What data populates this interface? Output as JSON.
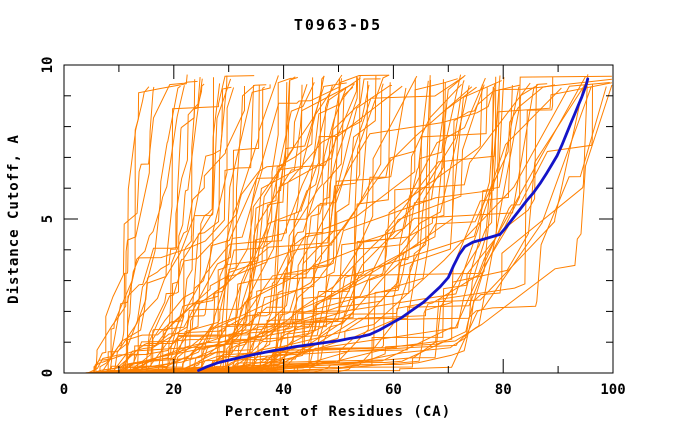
{
  "page": {
    "background": "#ffffff"
  },
  "chart_data": {
    "type": "line",
    "title": "T0963-D5",
    "xlabel": "Percent of Residues (CA)",
    "ylabel": "Distance Cutoff, A",
    "xlim": [
      0,
      100
    ],
    "ylim": [
      0,
      10
    ],
    "x_major_ticks": [
      0,
      20,
      40,
      60,
      80,
      100
    ],
    "x_minor_ticks": [
      10,
      30,
      50,
      70,
      90
    ],
    "y_major_ticks": [
      0,
      5,
      10
    ],
    "y_minor_ticks": [
      1,
      2,
      3,
      4,
      6,
      7,
      8,
      9
    ],
    "grid": false,
    "legend": null,
    "frame": "box-with-inward-mirrored-ticks",
    "colors": {
      "ensemble": "#ff8000",
      "highlight": "#1414c8",
      "axis": "#000000",
      "background": "#ffffff"
    },
    "series": [
      {
        "name": "highlight-model",
        "color": "#1414c8",
        "stroke_width": 2.8,
        "points": [
          [
            24.5,
            0.08
          ],
          [
            26,
            0.2
          ],
          [
            28,
            0.33
          ],
          [
            30,
            0.42
          ],
          [
            32,
            0.5
          ],
          [
            34,
            0.58
          ],
          [
            36,
            0.65
          ],
          [
            38,
            0.72
          ],
          [
            40,
            0.78
          ],
          [
            42,
            0.85
          ],
          [
            44,
            0.9
          ],
          [
            46,
            0.95
          ],
          [
            48,
            1.0
          ],
          [
            50,
            1.05
          ],
          [
            52,
            1.12
          ],
          [
            54,
            1.18
          ],
          [
            55.7,
            1.25
          ],
          [
            57.5,
            1.4
          ],
          [
            59.5,
            1.6
          ],
          [
            61.5,
            1.8
          ],
          [
            63.5,
            2.05
          ],
          [
            65.5,
            2.3
          ],
          [
            67,
            2.55
          ],
          [
            68.5,
            2.8
          ],
          [
            70,
            3.1
          ],
          [
            71,
            3.5
          ],
          [
            72,
            3.85
          ],
          [
            73,
            4.1
          ],
          [
            74.5,
            4.25
          ],
          [
            76,
            4.32
          ],
          [
            77.5,
            4.4
          ],
          [
            79.4,
            4.5
          ],
          [
            80.5,
            4.72
          ],
          [
            81.7,
            5.0
          ],
          [
            83,
            5.3
          ],
          [
            84.3,
            5.6
          ],
          [
            85.5,
            5.85
          ],
          [
            86.7,
            6.15
          ],
          [
            87.8,
            6.45
          ],
          [
            88.8,
            6.75
          ],
          [
            89.8,
            7.05
          ],
          [
            90.7,
            7.4
          ],
          [
            91.5,
            7.75
          ],
          [
            92.3,
            8.1
          ],
          [
            93,
            8.4
          ],
          [
            93.7,
            8.7
          ],
          [
            94.3,
            8.95
          ],
          [
            94.8,
            9.2
          ],
          [
            95.2,
            9.4
          ],
          [
            95.4,
            9.55
          ]
        ]
      }
    ],
    "ensemble": {
      "name": "model-curves",
      "color": "#ff8000",
      "stroke_width": 1,
      "count": 108,
      "seed": 20963,
      "x_start_range": [
        4,
        33
      ],
      "x_top_range": [
        13,
        99.8
      ],
      "y_top_range": [
        9.25,
        9.7
      ],
      "monotonic": true,
      "description": "Fan of ~108 jagged monotone cumulative CA-distance curves from lower-left toward upper-right, drawn behind the highlighted model curve."
    }
  }
}
